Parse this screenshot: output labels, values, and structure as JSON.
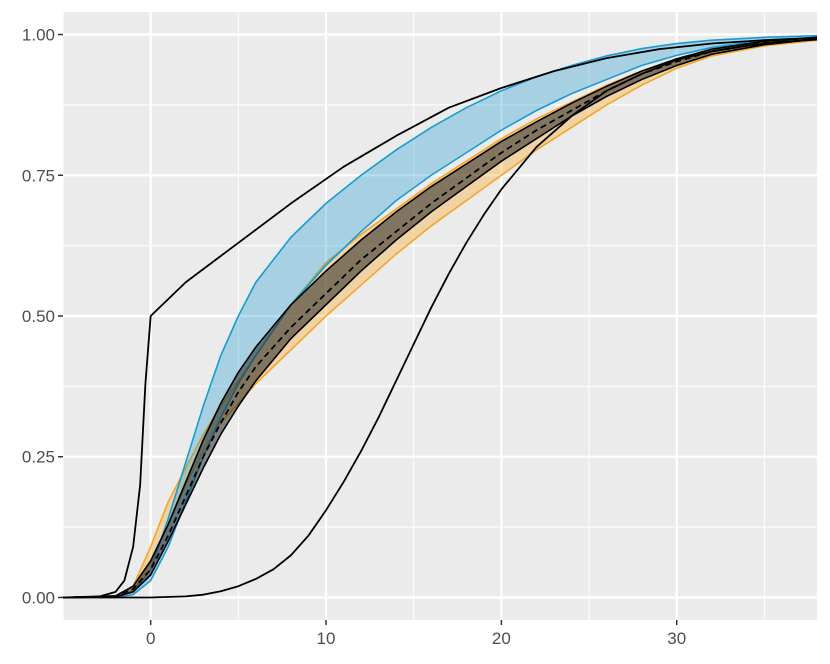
{
  "chart_data": {
    "type": "line",
    "title": "",
    "xlabel": "",
    "ylabel": "",
    "xlim": [
      -5,
      38
    ],
    "ylim": [
      -0.04,
      1.04
    ],
    "x_ticks": [
      0,
      10,
      20,
      30
    ],
    "x_tick_labels": [
      "0",
      "10",
      "20",
      "30"
    ],
    "y_ticks": [
      0,
      0.25,
      0.5,
      0.75,
      1.0
    ],
    "y_tick_labels": [
      "0.00",
      "0.25",
      "0.50",
      "0.75",
      "1.00"
    ],
    "grid": true,
    "legend": "none",
    "colors": {
      "panel": "#ebebeb",
      "grid": "#ffffff",
      "line": "#000000",
      "blue": "#1a9bd0",
      "orange": "#f5a623",
      "gray_band": "#3c3c3c"
    },
    "series": [
      {
        "style": "solid-black",
        "x": [
          -5,
          -3,
          -2,
          -1.5,
          -1,
          -0.6,
          -0.3,
          0,
          2,
          5,
          8,
          11,
          14,
          17,
          20,
          23,
          26,
          29,
          32,
          35,
          38
        ],
        "y": [
          0,
          0.001,
          0.01,
          0.03,
          0.09,
          0.2,
          0.38,
          0.5,
          0.56,
          0.63,
          0.7,
          0.765,
          0.82,
          0.87,
          0.905,
          0.935,
          0.958,
          0.974,
          0.984,
          0.99,
          0.994
        ]
      },
      {
        "style": "solid-black",
        "x": [
          -5,
          0,
          2,
          3,
          4,
          5,
          6,
          7,
          8,
          9,
          10,
          11,
          12,
          13,
          14,
          15,
          16,
          17,
          18,
          19,
          20,
          22,
          24,
          26,
          28,
          30,
          32,
          34,
          36,
          38
        ],
        "y": [
          0,
          0,
          0.002,
          0.005,
          0.011,
          0.02,
          0.033,
          0.05,
          0.075,
          0.11,
          0.155,
          0.205,
          0.26,
          0.32,
          0.385,
          0.45,
          0.515,
          0.575,
          0.63,
          0.68,
          0.725,
          0.8,
          0.855,
          0.9,
          0.93,
          0.955,
          0.97,
          0.98,
          0.987,
          0.991
        ]
      },
      {
        "style": "dashed-black",
        "x": [
          -5,
          -2,
          -1,
          0,
          1,
          2,
          3,
          4,
          5,
          6,
          8,
          10,
          12,
          14,
          16,
          18,
          20,
          22,
          24,
          26,
          28,
          30,
          32,
          35,
          38
        ],
        "y": [
          0,
          0.002,
          0.015,
          0.05,
          0.11,
          0.18,
          0.25,
          0.31,
          0.365,
          0.41,
          0.48,
          0.54,
          0.6,
          0.65,
          0.7,
          0.745,
          0.79,
          0.83,
          0.865,
          0.9,
          0.93,
          0.952,
          0.97,
          0.985,
          0.993
        ]
      }
    ],
    "bands": [
      {
        "color": "orange",
        "x": [
          -5,
          -2,
          -1,
          0,
          1,
          2,
          3,
          4,
          5,
          6,
          8,
          10,
          12,
          14,
          16,
          18,
          20,
          22,
          24,
          26,
          28,
          30,
          32,
          35,
          38
        ],
        "lower": [
          0,
          0.001,
          0.012,
          0.06,
          0.13,
          0.2,
          0.26,
          0.31,
          0.345,
          0.38,
          0.44,
          0.5,
          0.555,
          0.61,
          0.66,
          0.705,
          0.75,
          0.795,
          0.835,
          0.875,
          0.91,
          0.94,
          0.962,
          0.98,
          0.99
        ],
        "upper": [
          0,
          0.002,
          0.02,
          0.09,
          0.17,
          0.23,
          0.29,
          0.34,
          0.385,
          0.43,
          0.52,
          0.595,
          0.645,
          0.69,
          0.735,
          0.775,
          0.815,
          0.85,
          0.88,
          0.91,
          0.935,
          0.955,
          0.972,
          0.986,
          0.993
        ]
      },
      {
        "color": "blue",
        "x": [
          -5,
          -2,
          -1,
          0,
          1,
          2,
          3,
          4,
          5,
          6,
          8,
          10,
          12,
          14,
          16,
          18,
          20,
          22,
          24,
          26,
          28,
          30,
          32,
          35,
          38
        ],
        "lower": [
          0,
          0.0,
          0.005,
          0.03,
          0.09,
          0.17,
          0.25,
          0.32,
          0.38,
          0.43,
          0.52,
          0.59,
          0.65,
          0.705,
          0.75,
          0.79,
          0.83,
          0.865,
          0.895,
          0.92,
          0.945,
          0.963,
          0.977,
          0.99,
          0.995
        ],
        "upper": [
          0,
          0.001,
          0.01,
          0.05,
          0.14,
          0.24,
          0.34,
          0.43,
          0.5,
          0.56,
          0.64,
          0.7,
          0.75,
          0.795,
          0.835,
          0.87,
          0.9,
          0.925,
          0.945,
          0.962,
          0.975,
          0.984,
          0.99,
          0.995,
          0.998
        ]
      },
      {
        "color": "gray_band",
        "x": [
          -5,
          -2,
          -1,
          0,
          1,
          2,
          3,
          4,
          5,
          6,
          8,
          10,
          12,
          14,
          16,
          18,
          20,
          22,
          24,
          26,
          28,
          30,
          32,
          35,
          38
        ],
        "lower": [
          0,
          0.001,
          0.01,
          0.04,
          0.1,
          0.165,
          0.23,
          0.29,
          0.34,
          0.385,
          0.46,
          0.52,
          0.58,
          0.635,
          0.685,
          0.73,
          0.775,
          0.815,
          0.855,
          0.89,
          0.92,
          0.945,
          0.965,
          0.982,
          0.992
        ],
        "upper": [
          0,
          0.003,
          0.02,
          0.065,
          0.13,
          0.205,
          0.28,
          0.345,
          0.4,
          0.445,
          0.52,
          0.58,
          0.635,
          0.685,
          0.73,
          0.77,
          0.81,
          0.845,
          0.878,
          0.908,
          0.935,
          0.957,
          0.974,
          0.988,
          0.995
        ]
      }
    ]
  }
}
